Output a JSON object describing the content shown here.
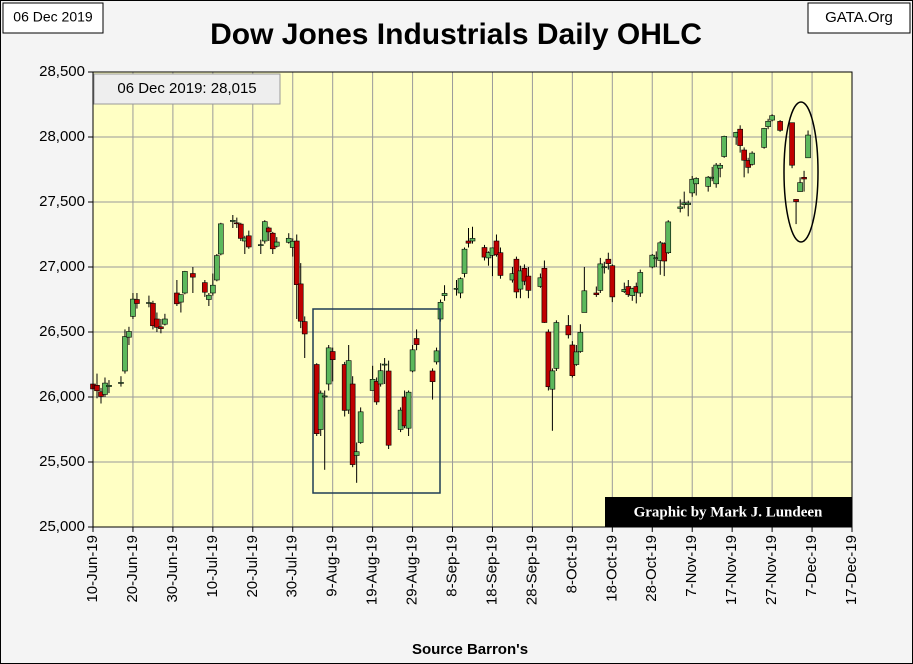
{
  "chart_data": {
    "type": "candlestick",
    "title": "Dow Jones Industrials Daily OHLC",
    "date_stamp": "06 Dec 2019",
    "site": "GATA.Org",
    "last_label": "06 Dec 2019: 28,015",
    "credit": "Graphic by Mark J. Lundeen",
    "source": "Source Barron's",
    "up_color": "#5cb85c",
    "down_color": "#c00000",
    "grid": true,
    "ylim": [
      25000,
      28500
    ],
    "yticks": [
      {
        "value": 25000,
        "label": "25,000"
      },
      {
        "value": 25500,
        "label": "25,500"
      },
      {
        "value": 26000,
        "label": "26,000"
      },
      {
        "value": 26500,
        "label": "26,500"
      },
      {
        "value": 27000,
        "label": "27,000"
      },
      {
        "value": 27500,
        "label": "27,500"
      },
      {
        "value": 28000,
        "label": "28,000"
      },
      {
        "value": 28500,
        "label": "28,500"
      }
    ],
    "xlim": [
      "2019-06-10",
      "2019-12-17"
    ],
    "xticks": [
      {
        "value": "2019-06-10",
        "label": "10-Jun-19"
      },
      {
        "value": "2019-06-20",
        "label": "20-Jun-19"
      },
      {
        "value": "2019-06-30",
        "label": "30-Jun-19"
      },
      {
        "value": "2019-07-10",
        "label": "10-Jul-19"
      },
      {
        "value": "2019-07-20",
        "label": "20-Jul-19"
      },
      {
        "value": "2019-07-30",
        "label": "30-Jul-19"
      },
      {
        "value": "2019-08-09",
        "label": "9-Aug-19"
      },
      {
        "value": "2019-08-19",
        "label": "19-Aug-19"
      },
      {
        "value": "2019-08-29",
        "label": "29-Aug-19"
      },
      {
        "value": "2019-09-08",
        "label": "8-Sep-19"
      },
      {
        "value": "2019-09-18",
        "label": "18-Sep-19"
      },
      {
        "value": "2019-09-28",
        "label": "28-Sep-19"
      },
      {
        "value": "2019-10-08",
        "label": "8-Oct-19"
      },
      {
        "value": "2019-10-18",
        "label": "18-Oct-19"
      },
      {
        "value": "2019-10-28",
        "label": "28-Oct-19"
      },
      {
        "value": "2019-11-07",
        "label": "7-Nov-19"
      },
      {
        "value": "2019-11-17",
        "label": "17-Nov-19"
      },
      {
        "value": "2019-11-27",
        "label": "27-Nov-19"
      },
      {
        "value": "2019-12-07",
        "label": "7-Dec-19"
      },
      {
        "value": "2019-12-17",
        "label": "17-Dec-19"
      }
    ],
    "x": [
      "2019-06-10",
      "2019-06-11",
      "2019-06-12",
      "2019-06-13",
      "2019-06-14",
      "2019-06-17",
      "2019-06-18",
      "2019-06-19",
      "2019-06-20",
      "2019-06-21",
      "2019-06-24",
      "2019-06-25",
      "2019-06-26",
      "2019-06-27",
      "2019-06-28",
      "2019-07-01",
      "2019-07-02",
      "2019-07-03",
      "2019-07-05",
      "2019-07-08",
      "2019-07-09",
      "2019-07-10",
      "2019-07-11",
      "2019-07-12",
      "2019-07-15",
      "2019-07-16",
      "2019-07-17",
      "2019-07-18",
      "2019-07-19",
      "2019-07-22",
      "2019-07-23",
      "2019-07-24",
      "2019-07-25",
      "2019-07-26",
      "2019-07-29",
      "2019-07-30",
      "2019-07-31",
      "2019-08-01",
      "2019-08-02",
      "2019-08-05",
      "2019-08-06",
      "2019-08-07",
      "2019-08-08",
      "2019-08-09",
      "2019-08-12",
      "2019-08-13",
      "2019-08-14",
      "2019-08-15",
      "2019-08-16",
      "2019-08-19",
      "2019-08-20",
      "2019-08-21",
      "2019-08-22",
      "2019-08-23",
      "2019-08-26",
      "2019-08-27",
      "2019-08-28",
      "2019-08-29",
      "2019-08-30",
      "2019-09-03",
      "2019-09-04",
      "2019-09-05",
      "2019-09-06",
      "2019-09-09",
      "2019-09-10",
      "2019-09-11",
      "2019-09-12",
      "2019-09-13",
      "2019-09-16",
      "2019-09-17",
      "2019-09-18",
      "2019-09-19",
      "2019-09-20",
      "2019-09-23",
      "2019-09-24",
      "2019-09-25",
      "2019-09-26",
      "2019-09-27",
      "2019-09-30",
      "2019-10-01",
      "2019-10-02",
      "2019-10-03",
      "2019-10-04",
      "2019-10-07",
      "2019-10-08",
      "2019-10-09",
      "2019-10-10",
      "2019-10-11",
      "2019-10-14",
      "2019-10-15",
      "2019-10-16",
      "2019-10-17",
      "2019-10-18",
      "2019-10-21",
      "2019-10-22",
      "2019-10-23",
      "2019-10-24",
      "2019-10-25",
      "2019-10-28",
      "2019-10-29",
      "2019-10-30",
      "2019-10-31",
      "2019-11-01",
      "2019-11-04",
      "2019-11-05",
      "2019-11-06",
      "2019-11-07",
      "2019-11-08",
      "2019-11-11",
      "2019-11-12",
      "2019-11-13",
      "2019-11-14",
      "2019-11-15",
      "2019-11-18",
      "2019-11-19",
      "2019-11-20",
      "2019-11-21",
      "2019-11-22",
      "2019-11-25",
      "2019-11-26",
      "2019-11-27",
      "2019-11-29",
      "2019-12-02",
      "2019-12-03",
      "2019-12-04",
      "2019-12-05",
      "2019-12-06"
    ],
    "open": [
      26100,
      26090,
      26040,
      26020,
      26080,
      26110,
      26200,
      26460,
      26620,
      26750,
      26720,
      26720,
      26600,
      26540,
      26560,
      26800,
      26730,
      26800,
      26950,
      26880,
      26750,
      26800,
      26900,
      27100,
      27350,
      27340,
      27330,
      27200,
      27240,
      27170,
      27200,
      27300,
      27260,
      27160,
      27190,
      27150,
      27200,
      26870,
      26580,
      26250,
      25750,
      26000,
      26100,
      26350,
      26250,
      25900,
      26100,
      25550,
      25650,
      26050,
      26120,
      26100,
      26250,
      26200,
      25750,
      26000,
      25760,
      26200,
      26450,
      26200,
      26270,
      26600,
      26780,
      26830,
      26800,
      26950,
      27200,
      27200,
      27150,
      27070,
      27090,
      27200,
      27110,
      26900,
      27060,
      26830,
      26990,
      26930,
      26850,
      26990,
      26500,
      26060,
      26220,
      26550,
      26400,
      26250,
      26350,
      26650,
      26800,
      26820,
      27000,
      27060,
      27010,
      26810,
      26850,
      26780,
      26850,
      26800,
      27000,
      27070,
      27050,
      27180,
      27110,
      27450,
      27480,
      27480,
      27570,
      27640,
      27620,
      27690,
      27640,
      27760,
      27850,
      28000,
      28060,
      27900,
      27820,
      27790,
      27920,
      28080,
      28130,
      28120,
      28110,
      27520,
      27580,
      27690,
      27840
    ],
    "high": [
      26190,
      26180,
      26070,
      26150,
      26130,
      26160,
      26520,
      26540,
      26800,
      26800,
      26780,
      26740,
      26650,
      26600,
      26640,
      26900,
      26790,
      26970,
      27000,
      26900,
      26800,
      26950,
      27100,
      27340,
      27400,
      27380,
      27340,
      27240,
      27280,
      27210,
      27360,
      27310,
      27270,
      27230,
      27260,
      27220,
      27250,
      27030,
      26620,
      26260,
      26050,
      26050,
      26400,
      26380,
      26270,
      26400,
      26160,
      25650,
      25920,
      26240,
      26150,
      26260,
      26300,
      26280,
      25920,
      26050,
      26050,
      26400,
      26520,
      26220,
      26380,
      26750,
      26860,
      26900,
      26920,
      27150,
      27300,
      27310,
      27170,
      27120,
      27150,
      27250,
      27150,
      27000,
      27080,
      27010,
      27020,
      27000,
      26950,
      27050,
      26520,
      26220,
      26590,
      26630,
      26430,
      26400,
      26560,
      27000,
      26850,
      27070,
      27040,
      27110,
      27020,
      26880,
      26900,
      26840,
      26880,
      26980,
      27100,
      27120,
      27200,
      27190,
      27360,
      27520,
      27580,
      27510,
      27700,
      27690,
      27700,
      27770,
      27800,
      27800,
      28010,
      28040,
      28090,
      27920,
      27840,
      27890,
      28070,
      28140,
      28175,
      28130,
      28110,
      27520,
      27690,
      27740,
      28050
    ],
    "low": [
      26020,
      25990,
      25950,
      26000,
      26030,
      26080,
      26180,
      26400,
      26600,
      26680,
      26690,
      26520,
      26500,
      26490,
      26550,
      26700,
      26650,
      26790,
      26800,
      26770,
      26700,
      26780,
      26890,
      27090,
      27300,
      27300,
      27200,
      27100,
      27140,
      27100,
      27180,
      27200,
      27100,
      27150,
      27180,
      27080,
      26600,
      26530,
      26300,
      25700,
      25700,
      25440,
      26050,
      26120,
      25850,
      25870,
      25460,
      25340,
      25640,
      26050,
      25940,
      26080,
      26100,
      25600,
      25730,
      25760,
      25700,
      26190,
      26360,
      25980,
      26250,
      26580,
      26740,
      26780,
      26760,
      26920,
      27150,
      27180,
      27050,
      27010,
      26930,
      27080,
      26910,
      26880,
      26760,
      26760,
      26860,
      26760,
      26840,
      26570,
      26050,
      25740,
      26200,
      26450,
      26150,
      26240,
      26340,
      26650,
      26770,
      26800,
      26950,
      26980,
      26730,
      26800,
      26770,
      26740,
      26720,
      26770,
      26990,
      27000,
      26940,
      26930,
      27100,
      27420,
      27450,
      27390,
      27540,
      27550,
      27580,
      27660,
      27610,
      27690,
      27840,
      27940,
      27880,
      27690,
      27720,
      27780,
      27910,
      28060,
      28120,
      28040,
      27760,
      27330,
      27580,
      27580,
      27840
    ],
    "close": [
      26062,
      26048,
      26004,
      26107,
      26090,
      26112,
      26465,
      26504,
      26753,
      26719,
      26727,
      26548,
      26536,
      26526,
      26600,
      26717,
      26787,
      26966,
      26922,
      26806,
      26783,
      26860,
      27088,
      27332,
      27359,
      27335,
      27220,
      27223,
      27154,
      27172,
      27349,
      27270,
      27140,
      27192,
      27221,
      27198,
      26864,
      26583,
      26485,
      25718,
      26030,
      26008,
      26378,
      26287,
      25897,
      26280,
      25480,
      25579,
      25886,
      26136,
      25962,
      26202,
      26253,
      25629,
      25899,
      25778,
      26037,
      26363,
      26403,
      26118,
      26355,
      26728,
      26797,
      26836,
      26910,
      27137,
      27183,
      27220,
      27076,
      27111,
      27147,
      27094,
      26935,
      26949,
      26808,
      26970,
      26891,
      26820,
      26917,
      26573,
      26079,
      26201,
      26573,
      26478,
      26164,
      26347,
      26497,
      26817,
      26787,
      27024,
      27002,
      27026,
      26770,
      26828,
      26788,
      26834,
      26806,
      26958,
      27091,
      27071,
      27186,
      27046,
      27347,
      27462,
      27493,
      27492,
      27675,
      27681,
      27691,
      27691,
      27784,
      27782,
      28005,
      28036,
      27934,
      27821,
      27766,
      27876,
      28066,
      28121,
      28164,
      28051,
      27783,
      27503,
      27649,
      27677,
      28015
    ]
  }
}
